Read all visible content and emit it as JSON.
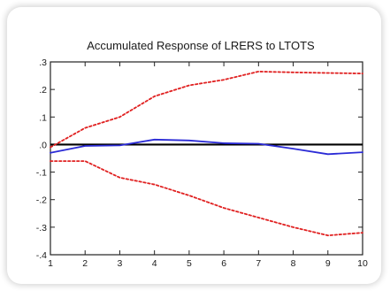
{
  "chart_data": {
    "type": "line",
    "title": "Accumulated Response of LRERS to LTOTS",
    "xlabel": "",
    "ylabel": "",
    "x": [
      1,
      2,
      3,
      4,
      5,
      6,
      7,
      8,
      9,
      10
    ],
    "xticks": [
      "1",
      "2",
      "3",
      "4",
      "5",
      "6",
      "7",
      "8",
      "9",
      "10"
    ],
    "ylim": [
      -0.4,
      0.3
    ],
    "yticks": [
      {
        "value": 0.3,
        "label": ".3"
      },
      {
        "value": 0.2,
        "label": ".2"
      },
      {
        "value": 0.1,
        "label": ".1"
      },
      {
        "value": 0.0,
        "label": ".0"
      },
      {
        "value": -0.1,
        "label": "-.1"
      },
      {
        "value": -0.2,
        "label": "-.2"
      },
      {
        "value": -0.3,
        "label": "-.3"
      },
      {
        "value": -0.4,
        "label": "-.4"
      }
    ],
    "zero_line": true,
    "grid": false,
    "series": [
      {
        "key": "response",
        "style": "solid",
        "color": "#2b2bd6",
        "values": [
          -0.03,
          -0.005,
          -0.003,
          0.018,
          0.015,
          0.005,
          0.003,
          -0.015,
          -0.035,
          -0.028
        ]
      },
      {
        "key": "upper_band",
        "style": "dotted",
        "color": "#e02020",
        "values": [
          -0.01,
          0.06,
          0.1,
          0.175,
          0.215,
          0.235,
          0.265,
          0.262,
          0.26,
          0.258
        ]
      },
      {
        "key": "lower_band",
        "style": "dotted",
        "color": "#e02020",
        "values": [
          -0.06,
          -0.06,
          -0.12,
          -0.145,
          -0.185,
          -0.23,
          -0.265,
          -0.3,
          -0.33,
          -0.32
        ]
      }
    ]
  }
}
